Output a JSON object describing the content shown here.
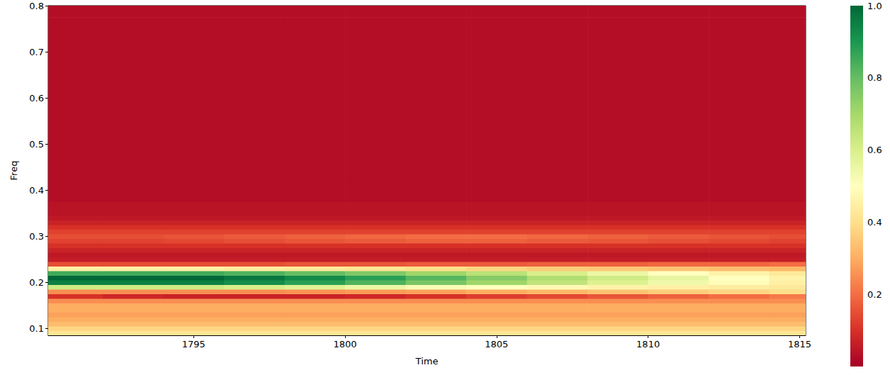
{
  "chart_data": {
    "type": "heatmap",
    "xlabel": "Time",
    "ylabel": "Freq",
    "x": [
      1791,
      1793,
      1795,
      1797,
      1799,
      1801,
      1803,
      1805,
      1807,
      1809,
      1811,
      1813,
      1815
    ],
    "y": [
      0.09,
      0.1,
      0.11,
      0.12,
      0.13,
      0.14,
      0.15,
      0.16,
      0.17,
      0.18,
      0.19,
      0.2,
      0.21,
      0.22,
      0.23,
      0.24,
      0.25,
      0.26,
      0.27,
      0.28,
      0.29,
      0.3,
      0.31,
      0.32,
      0.33,
      0.34,
      0.35,
      0.4,
      0.45,
      0.5,
      0.55,
      0.6,
      0.65,
      0.7,
      0.75,
      0.8
    ],
    "z": [
      [
        0.42,
        0.42,
        0.42,
        0.42,
        0.42,
        0.42,
        0.42,
        0.42,
        0.42,
        0.42,
        0.42,
        0.42,
        0.42
      ],
      [
        0.38,
        0.38,
        0.38,
        0.38,
        0.38,
        0.38,
        0.38,
        0.38,
        0.38,
        0.38,
        0.38,
        0.38,
        0.38
      ],
      [
        0.33,
        0.33,
        0.33,
        0.33,
        0.33,
        0.33,
        0.33,
        0.33,
        0.33,
        0.33,
        0.33,
        0.33,
        0.33
      ],
      [
        0.3,
        0.3,
        0.3,
        0.3,
        0.3,
        0.3,
        0.3,
        0.3,
        0.3,
        0.3,
        0.3,
        0.3,
        0.3
      ],
      [
        0.28,
        0.28,
        0.28,
        0.28,
        0.28,
        0.28,
        0.28,
        0.28,
        0.28,
        0.28,
        0.28,
        0.28,
        0.28
      ],
      [
        0.3,
        0.3,
        0.3,
        0.3,
        0.3,
        0.3,
        0.3,
        0.3,
        0.3,
        0.3,
        0.3,
        0.3,
        0.3
      ],
      [
        0.3,
        0.3,
        0.3,
        0.3,
        0.3,
        0.3,
        0.3,
        0.3,
        0.3,
        0.3,
        0.3,
        0.3,
        0.3
      ],
      [
        0.25,
        0.25,
        0.25,
        0.25,
        0.25,
        0.25,
        0.25,
        0.25,
        0.25,
        0.25,
        0.25,
        0.25,
        0.25
      ],
      [
        0.1,
        0.08,
        0.07,
        0.07,
        0.07,
        0.08,
        0.1,
        0.12,
        0.14,
        0.16,
        0.18,
        0.2,
        0.22
      ],
      [
        0.25,
        0.25,
        0.25,
        0.25,
        0.26,
        0.27,
        0.28,
        0.3,
        0.32,
        0.34,
        0.36,
        0.38,
        0.4
      ],
      [
        0.62,
        0.62,
        0.62,
        0.6,
        0.58,
        0.55,
        0.52,
        0.5,
        0.48,
        0.46,
        0.45,
        0.44,
        0.43
      ],
      [
        0.95,
        0.95,
        0.95,
        0.92,
        0.88,
        0.83,
        0.77,
        0.71,
        0.65,
        0.59,
        0.54,
        0.49,
        0.45
      ],
      [
        1.0,
        1.0,
        1.0,
        0.97,
        0.93,
        0.88,
        0.82,
        0.75,
        0.68,
        0.62,
        0.56,
        0.5,
        0.46
      ],
      [
        0.85,
        0.85,
        0.85,
        0.83,
        0.8,
        0.76,
        0.71,
        0.66,
        0.6,
        0.55,
        0.5,
        0.46,
        0.43
      ],
      [
        0.45,
        0.45,
        0.45,
        0.44,
        0.43,
        0.42,
        0.4,
        0.38,
        0.36,
        0.35,
        0.34,
        0.33,
        0.32
      ],
      [
        0.15,
        0.15,
        0.15,
        0.15,
        0.16,
        0.16,
        0.17,
        0.17,
        0.18,
        0.18,
        0.19,
        0.19,
        0.2
      ],
      [
        0.06,
        0.06,
        0.06,
        0.06,
        0.06,
        0.06,
        0.06,
        0.06,
        0.06,
        0.06,
        0.06,
        0.06,
        0.06
      ],
      [
        0.05,
        0.05,
        0.05,
        0.05,
        0.05,
        0.05,
        0.05,
        0.05,
        0.05,
        0.05,
        0.05,
        0.05,
        0.05
      ],
      [
        0.07,
        0.07,
        0.07,
        0.07,
        0.07,
        0.07,
        0.07,
        0.07,
        0.07,
        0.07,
        0.07,
        0.07,
        0.07
      ],
      [
        0.1,
        0.1,
        0.1,
        0.1,
        0.1,
        0.1,
        0.1,
        0.1,
        0.1,
        0.1,
        0.1,
        0.1,
        0.1
      ],
      [
        0.13,
        0.13,
        0.14,
        0.15,
        0.16,
        0.17,
        0.18,
        0.18,
        0.17,
        0.16,
        0.15,
        0.14,
        0.13
      ],
      [
        0.15,
        0.15,
        0.16,
        0.17,
        0.18,
        0.19,
        0.2,
        0.2,
        0.19,
        0.18,
        0.17,
        0.16,
        0.15
      ],
      [
        0.13,
        0.13,
        0.13,
        0.13,
        0.13,
        0.13,
        0.13,
        0.13,
        0.13,
        0.13,
        0.13,
        0.13,
        0.13
      ],
      [
        0.1,
        0.1,
        0.1,
        0.1,
        0.1,
        0.1,
        0.1,
        0.1,
        0.1,
        0.1,
        0.1,
        0.1,
        0.1
      ],
      [
        0.07,
        0.07,
        0.07,
        0.07,
        0.07,
        0.07,
        0.07,
        0.07,
        0.07,
        0.07,
        0.07,
        0.07,
        0.07
      ],
      [
        0.05,
        0.05,
        0.05,
        0.05,
        0.05,
        0.05,
        0.05,
        0.05,
        0.05,
        0.05,
        0.05,
        0.05,
        0.05
      ],
      [
        0.04,
        0.04,
        0.04,
        0.04,
        0.04,
        0.04,
        0.04,
        0.04,
        0.04,
        0.04,
        0.04,
        0.04,
        0.04
      ],
      [
        0.03,
        0.03,
        0.03,
        0.03,
        0.03,
        0.03,
        0.03,
        0.03,
        0.03,
        0.03,
        0.03,
        0.03,
        0.03
      ],
      [
        0.03,
        0.03,
        0.03,
        0.03,
        0.03,
        0.03,
        0.03,
        0.03,
        0.03,
        0.03,
        0.03,
        0.03,
        0.03
      ],
      [
        0.03,
        0.03,
        0.03,
        0.03,
        0.03,
        0.03,
        0.03,
        0.03,
        0.03,
        0.03,
        0.03,
        0.03,
        0.03
      ],
      [
        0.03,
        0.03,
        0.03,
        0.03,
        0.03,
        0.03,
        0.03,
        0.03,
        0.03,
        0.03,
        0.03,
        0.03,
        0.03
      ],
      [
        0.03,
        0.03,
        0.03,
        0.03,
        0.03,
        0.03,
        0.03,
        0.03,
        0.03,
        0.03,
        0.03,
        0.03,
        0.03
      ],
      [
        0.03,
        0.03,
        0.03,
        0.03,
        0.03,
        0.03,
        0.03,
        0.03,
        0.03,
        0.03,
        0.03,
        0.03,
        0.03
      ],
      [
        0.03,
        0.03,
        0.03,
        0.03,
        0.03,
        0.03,
        0.03,
        0.03,
        0.03,
        0.03,
        0.03,
        0.03,
        0.03
      ],
      [
        0.03,
        0.03,
        0.03,
        0.03,
        0.03,
        0.03,
        0.03,
        0.03,
        0.03,
        0.03,
        0.03,
        0.03,
        0.03
      ],
      [
        0.03,
        0.03,
        0.03,
        0.03,
        0.03,
        0.03,
        0.03,
        0.03,
        0.03,
        0.03,
        0.03,
        0.03,
        0.03
      ]
    ],
    "xlim": [
      1790.2,
      1815.2
    ],
    "xticks": [
      1795,
      1800,
      1805,
      1810,
      1815
    ],
    "ylim": [
      0.085,
      0.8
    ],
    "yticks": [
      0.1,
      0.2,
      0.3,
      0.4,
      0.5,
      0.6,
      0.7,
      0.8
    ],
    "colorbar": {
      "lim": [
        0,
        1
      ],
      "ticks": [
        0.2,
        0.4,
        0.6,
        0.8,
        {
          "value": 1,
          "label": "1.0"
        }
      ]
    }
  }
}
